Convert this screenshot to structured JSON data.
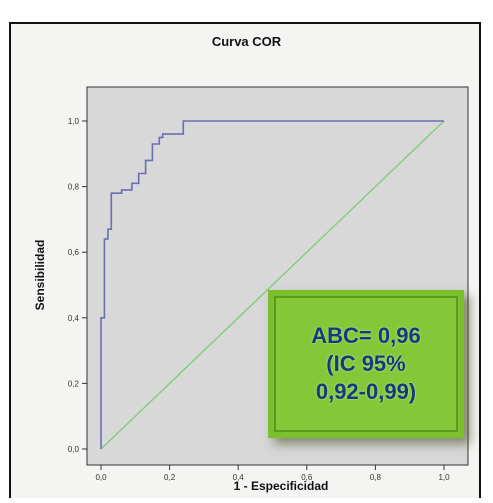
{
  "chart_data": {
    "type": "line",
    "title": "Curva COR",
    "xlabel": "1 - Especificidad",
    "ylabel": "Sensibilidad",
    "xlim": [
      0,
      1
    ],
    "ylim": [
      0,
      1
    ],
    "xticks": [
      "0,0",
      "0,2",
      "0,4",
      "0,6",
      "0,8",
      "1,0"
    ],
    "yticks": [
      "0,0",
      "0,2",
      "0,4",
      "0,6",
      "0,8",
      "1,0"
    ],
    "grid": false,
    "series": [
      {
        "color": "#6a6fb4",
        "x": [
          0,
          0,
          0.01,
          0.01,
          0.02,
          0.02,
          0.03,
          0.03,
          0.06,
          0.06,
          0.09,
          0.09,
          0.11,
          0.11,
          0.13,
          0.13,
          0.15,
          0.15,
          0.17,
          0.17,
          0.18,
          0.18,
          0.24,
          0.24,
          1.0
        ],
        "y": [
          0,
          0.4,
          0.4,
          0.64,
          0.64,
          0.67,
          0.67,
          0.78,
          0.78,
          0.79,
          0.79,
          0.81,
          0.81,
          0.84,
          0.84,
          0.88,
          0.88,
          0.93,
          0.93,
          0.95,
          0.95,
          0.96,
          0.96,
          1.0,
          1.0
        ]
      },
      {
        "color": "#7fcf7a",
        "x": [
          0,
          1
        ],
        "y": [
          0,
          1
        ]
      }
    ],
    "annotation": {
      "lines": [
        "ABC= 0,96",
        "(IC 95%",
        "0,92-0,99)"
      ]
    }
  }
}
